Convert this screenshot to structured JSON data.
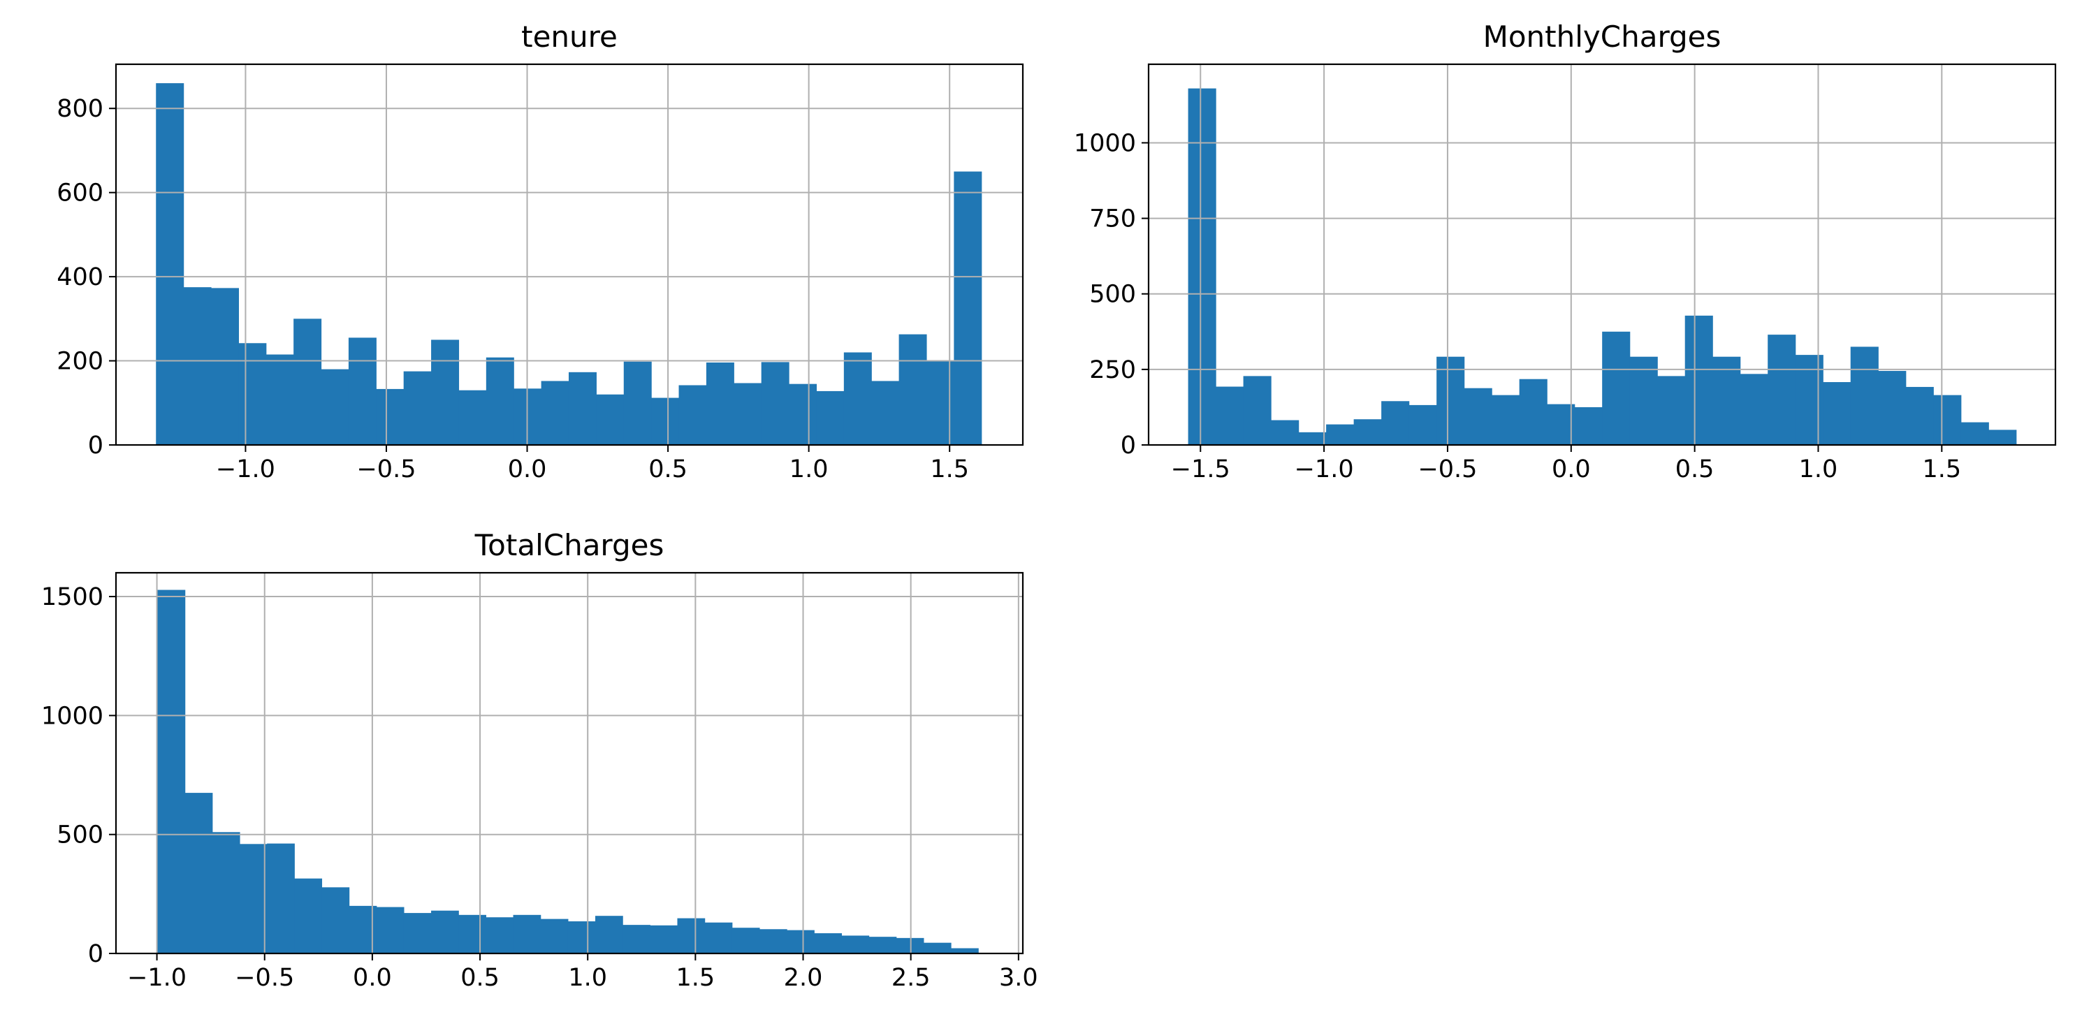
{
  "chart_data": [
    {
      "type": "bar",
      "title": "tenure",
      "xlabel": "",
      "ylabel": "",
      "xlim": [
        -1.46,
        1.76
      ],
      "ylim": [
        0,
        905
      ],
      "xticks": [
        -1.0,
        -0.5,
        0.0,
        0.5,
        1.0,
        1.5
      ],
      "xtick_labels": [
        "−1.0",
        "−0.5",
        "0.0",
        "0.5",
        "1.0",
        "1.5"
      ],
      "yticks": [
        0,
        200,
        400,
        600,
        800
      ],
      "ytick_labels": [
        "0",
        "200",
        "400",
        "600",
        "800"
      ],
      "grid": true,
      "bin_start": -1.318,
      "bin_width": 0.0977,
      "values": [
        860,
        375,
        373,
        242,
        215,
        300,
        180,
        255,
        133,
        175,
        250,
        130,
        208,
        134,
        152,
        173,
        120,
        198,
        112,
        142,
        196,
        147,
        197,
        145,
        128,
        220,
        152,
        263,
        200,
        650
      ]
    },
    {
      "type": "bar",
      "title": "MonthlyCharges",
      "xlabel": "",
      "ylabel": "",
      "xlim": [
        -1.71,
        1.96
      ],
      "ylim": [
        0,
        1260
      ],
      "xticks": [
        -1.5,
        -1.0,
        -0.5,
        0.0,
        0.5,
        1.0,
        1.5
      ],
      "xtick_labels": [
        "−1.5",
        "−1.0",
        "−0.5",
        "0.0",
        "0.5",
        "1.0",
        "1.5"
      ],
      "yticks": [
        0,
        250,
        500,
        750,
        1000
      ],
      "ytick_labels": [
        "0",
        "250",
        "500",
        "750",
        "1000"
      ],
      "grid": true,
      "bin_start": -1.55,
      "bin_width": 0.1117,
      "values": [
        1180,
        193,
        228,
        82,
        42,
        68,
        85,
        145,
        132,
        292,
        188,
        165,
        218,
        135,
        125,
        375,
        292,
        228,
        428,
        292,
        235,
        365,
        298,
        208,
        325,
        245,
        192,
        165,
        75,
        50
      ]
    },
    {
      "type": "bar",
      "title": "TotalCharges",
      "xlabel": "",
      "ylabel": "",
      "xlim": [
        -1.19,
        3.02
      ],
      "ylim": [
        0,
        1600
      ],
      "xticks": [
        -1.0,
        -0.5,
        0.0,
        0.5,
        1.0,
        1.5,
        2.0,
        2.5,
        3.0
      ],
      "xtick_labels": [
        "−1.0",
        "−0.5",
        "0.0",
        "0.5",
        "1.0",
        "1.5",
        "2.0",
        "2.5",
        "3.0"
      ],
      "yticks": [
        0,
        500,
        1000,
        1500
      ],
      "ytick_labels": [
        "0",
        "500",
        "1000",
        "1500"
      ],
      "grid": true,
      "bin_start": -0.997,
      "bin_width": 0.127,
      "values": [
        1528,
        675,
        510,
        460,
        462,
        315,
        278,
        200,
        195,
        170,
        180,
        162,
        152,
        162,
        145,
        135,
        158,
        120,
        118,
        148,
        130,
        108,
        102,
        98,
        85,
        75,
        70,
        65,
        45,
        22
      ]
    }
  ],
  "colors": {
    "bar": "#2077b4",
    "grid": "#b0b0b0",
    "axis": "#000000"
  }
}
